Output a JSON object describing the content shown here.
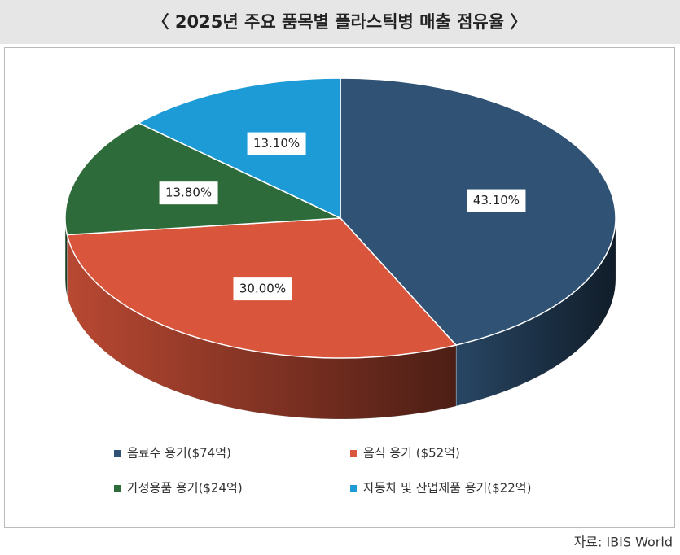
{
  "chart_data": {
    "type": "pie3d",
    "title": "〈 2025년 주요 품목별 플라스틱병 매출 점유율 〉",
    "categories": [
      "음료수 용기($74억)",
      "음식 용기 ($52억)",
      "가정용품 용기($24억)",
      "자동차 및 산업제품 용기($22억)"
    ],
    "values": [
      43.1,
      30.0,
      13.8,
      13.1
    ],
    "value_labels": [
      "43.10%",
      "30.00%",
      "13.80%",
      "13.10%"
    ],
    "colors": [
      "#2f5275",
      "#d9553b",
      "#2e6b3a",
      "#1d9bd7"
    ],
    "source": "자료: IBIS World"
  }
}
